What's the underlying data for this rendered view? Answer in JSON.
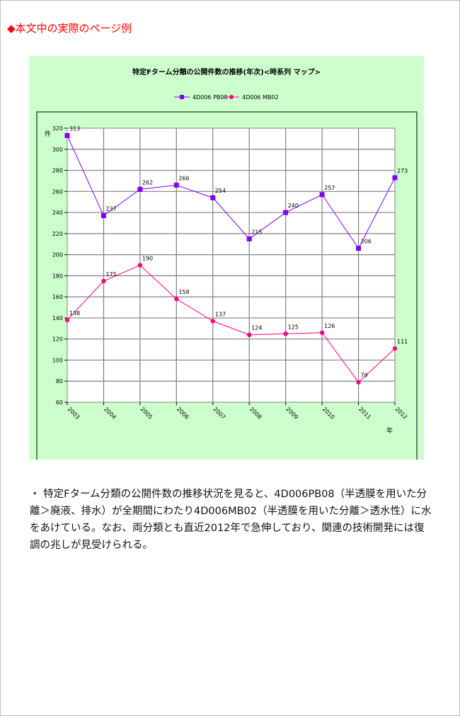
{
  "page": {
    "section_title": "◆本文中の実際のページ例",
    "body_text": "・ 特定Fターム分類の公開件数の推移状況を見ると、4D006PB08（半透膜を用いた分離＞廃液、排水）が全期間にわたり4D006MB02（半透膜を用いた分離＞透水性）に水をあけている。なお、両分類とも直近2012年で急伸しており、関連の技術開発には復調の兆しが見受けられる。"
  },
  "chart_data": {
    "type": "line",
    "title": "特定Fターム分類の公開件数の推移(年次)<時系列 マップ>",
    "xlabel": "年",
    "ylabel": "件",
    "categories": [
      "2003",
      "2004",
      "2005",
      "2006",
      "2007",
      "2008",
      "2009",
      "2010",
      "2011",
      "2012"
    ],
    "ylim": [
      60,
      320
    ],
    "yticks": [
      60,
      80,
      100,
      120,
      140,
      160,
      180,
      200,
      220,
      240,
      260,
      280,
      300,
      320
    ],
    "grid": true,
    "legend_position": "top",
    "series": [
      {
        "name": "4D006 PB08",
        "color": "#8000ff",
        "marker": "square",
        "values": [
          313,
          237,
          262,
          266,
          254,
          215,
          240,
          257,
          206,
          273
        ]
      },
      {
        "name": "4D006 MB02",
        "color": "#ff0080",
        "marker": "circle",
        "values": [
          138,
          175,
          190,
          158,
          137,
          124,
          125,
          126,
          79,
          111
        ]
      }
    ]
  }
}
